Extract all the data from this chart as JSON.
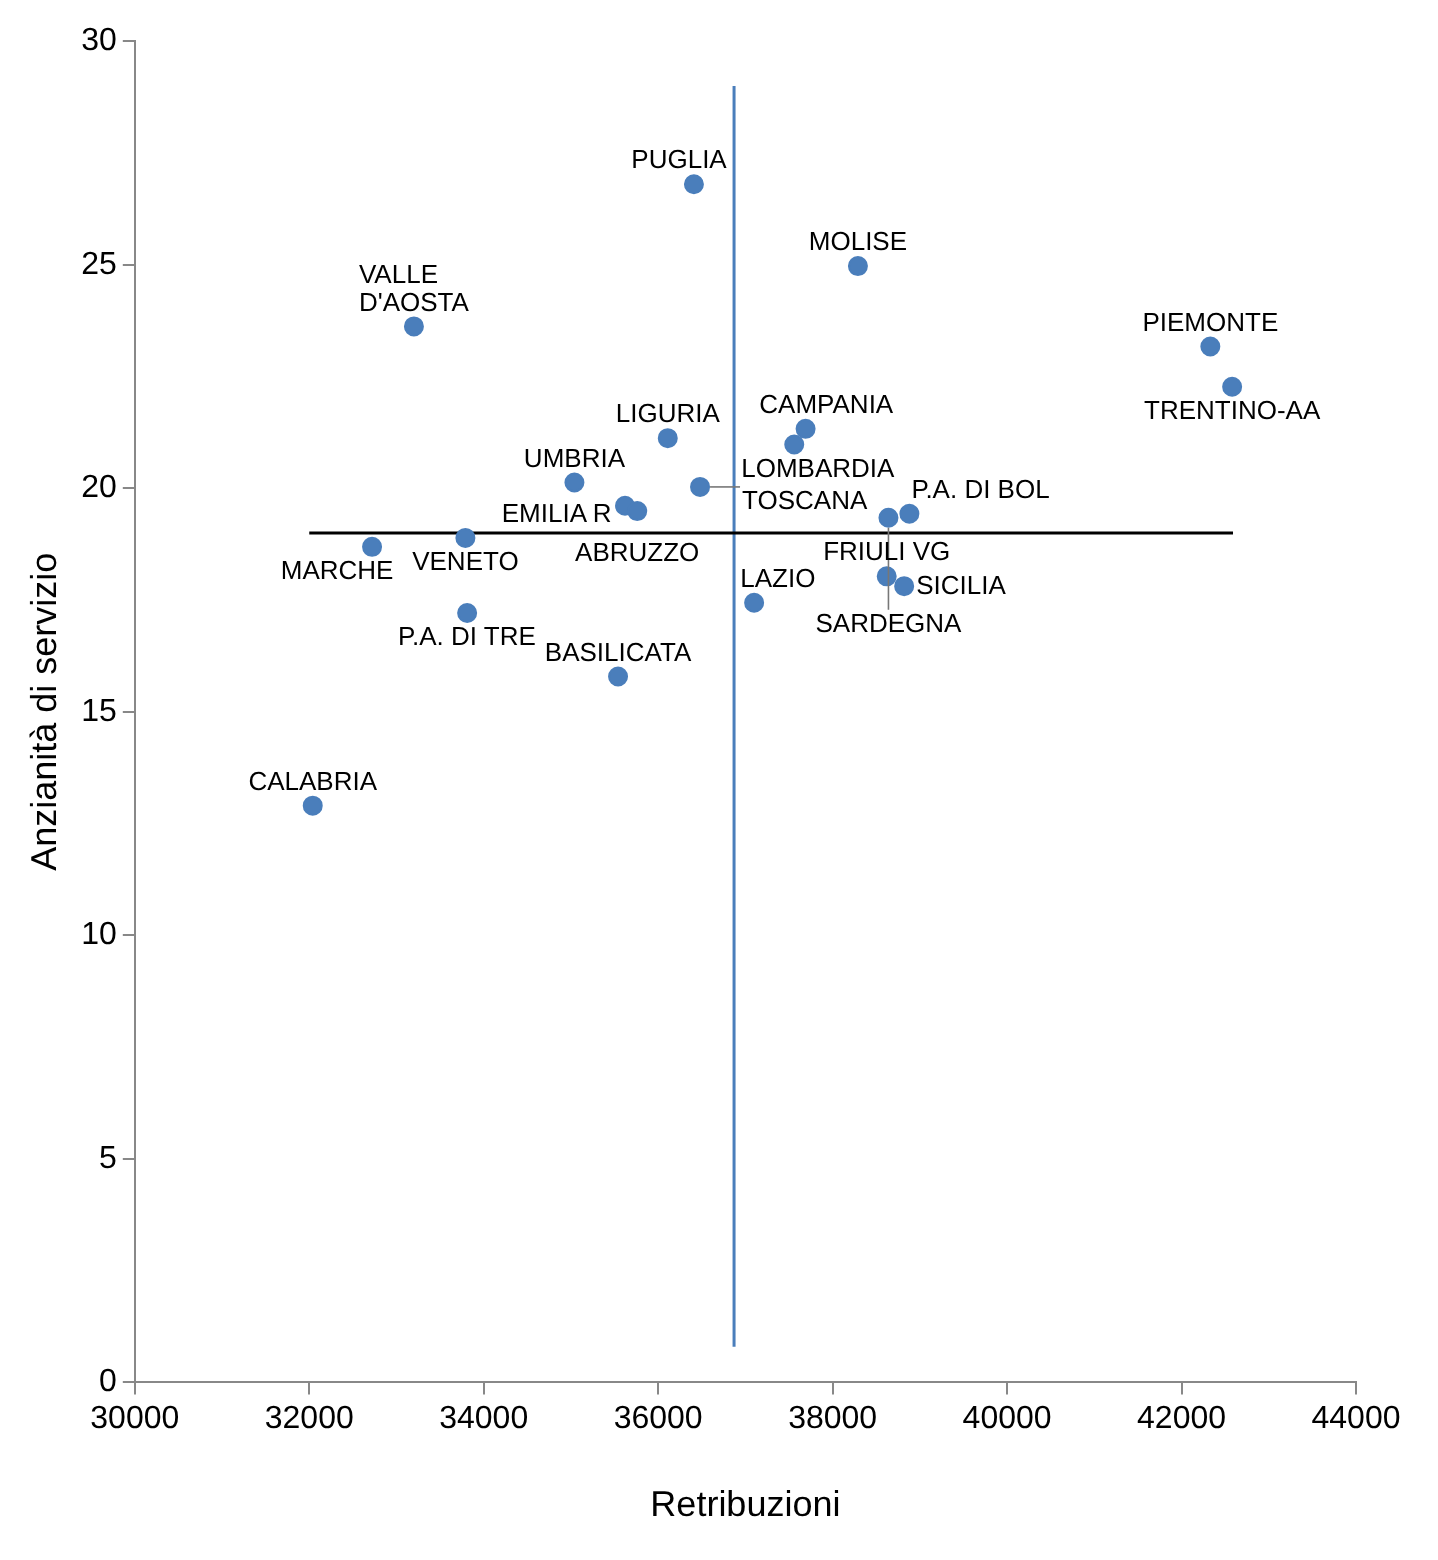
{
  "chart_data": {
    "type": "scatter",
    "xlabel": "Retribuzioni",
    "ylabel": "Anzianità di servizio",
    "xlim": [
      30000,
      44000
    ],
    "xticks": [
      30000,
      32000,
      34000,
      36000,
      38000,
      40000,
      42000,
      44000
    ],
    "ylim": [
      0,
      30
    ],
    "yticks": [
      0,
      5,
      10,
      15,
      20,
      25,
      30
    ],
    "grid": false,
    "legend": false,
    "series": [
      {
        "color": "#4a7ebb",
        "x": [
          36410,
          33200,
          38290,
          42330,
          42580,
          36110,
          37690,
          37560,
          35040,
          36480,
          35620,
          35760,
          38880,
          38640,
          33790,
          32720,
          33810,
          37100,
          38620,
          38820,
          35540,
          32040
        ],
        "values": [
          26.8,
          23.62,
          24.97,
          23.17,
          22.27,
          21.12,
          21.33,
          20.98,
          20.13,
          20.03,
          19.61,
          19.49,
          19.43,
          19.34,
          18.89,
          18.69,
          17.21,
          17.44,
          18.03,
          17.81,
          15.79,
          12.9
        ],
        "marker": "circle"
      },
      {
        "type": "line",
        "color": "#000000",
        "x": [
          32000,
          42590
        ],
        "values": [
          19,
          19
        ]
      },
      {
        "type": "line",
        "color": "#4a7ebb",
        "x": [
          36870,
          36870
        ],
        "values": [
          0.8,
          29
        ]
      }
    ],
    "annotations": [
      {
        "text": "PUGLIA",
        "x": 36410,
        "y": 26.8
      },
      {
        "text": "VALLE\nD'AOSTA",
        "x": 33200,
        "y": 23.62
      },
      {
        "text": "MOLISE",
        "x": 38290,
        "y": 24.97
      },
      {
        "text": "PIEMONTE",
        "x": 42330,
        "y": 23.17
      },
      {
        "text": "TRENTINO-AA",
        "x": 42580,
        "y": 22.27
      },
      {
        "text": "LIGURIA",
        "x": 36110,
        "y": 21.12
      },
      {
        "text": "CAMPANIA",
        "x": 37690,
        "y": 21.33
      },
      {
        "text": "LOMBARDIA",
        "x": 37560,
        "y": 20.98
      },
      {
        "text": "UMBRIA",
        "x": 35040,
        "y": 20.13
      },
      {
        "text": "TOSCANA",
        "x": 36480,
        "y": 20.03
      },
      {
        "text": "EMILIA R",
        "x": 35620,
        "y": 19.61
      },
      {
        "text": "ABRUZZO",
        "x": 35760,
        "y": 19.49
      },
      {
        "text": "P.A. DI BOL",
        "x": 38880,
        "y": 19.43
      },
      {
        "text": "SARDEGNA",
        "x": 38640,
        "y": 19.34
      },
      {
        "text": "VENETO",
        "x": 33790,
        "y": 18.89
      },
      {
        "text": "MARCHE",
        "x": 32720,
        "y": 18.69
      },
      {
        "text": "P.A. DI TRE",
        "x": 33810,
        "y": 17.21
      },
      {
        "text": "LAZIO",
        "x": 37100,
        "y": 17.44
      },
      {
        "text": "FRIULI VG",
        "x": 38620,
        "y": 18.03
      },
      {
        "text": "SICILIA",
        "x": 38820,
        "y": 17.81
      },
      {
        "text": "BASILICATA",
        "x": 35540,
        "y": 15.79
      },
      {
        "text": "CALABRIA",
        "x": 32040,
        "y": 12.9
      }
    ]
  }
}
